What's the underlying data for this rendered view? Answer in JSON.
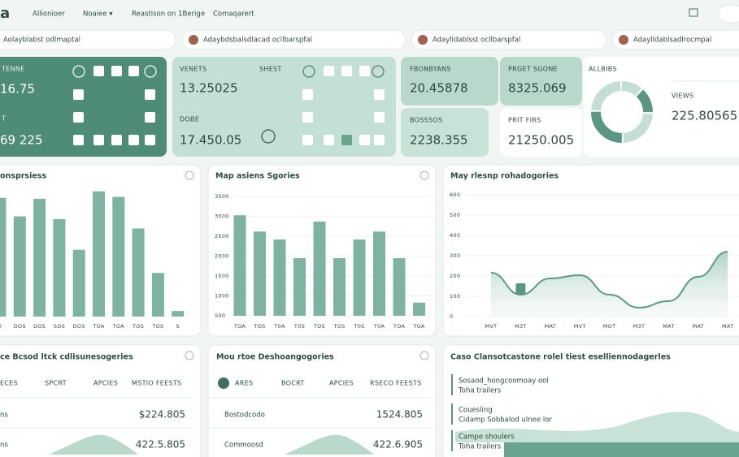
{
  "nav": {
    "brand": "a",
    "links": [
      "Allionioer",
      "Noaiee ▾",
      "Reastison on 1Berige",
      "Comaqarert"
    ]
  },
  "searches": [
    "Aolayblabst odlmaptal",
    "Adaybdsbalsdlacad ocllbarspfal",
    "Adaylldablsst ocllbarspfal",
    "Adaylldablsadlrocmpal"
  ],
  "cards": [
    {
      "label": "TENNE",
      "value": "16.75"
    },
    {
      "label": "T",
      "value": "69 225"
    },
    {
      "label": "VENETS",
      "value": "13.25025"
    },
    {
      "label": "SHEST"
    },
    {
      "label": "DOBE",
      "value": "17.450.05"
    },
    {
      "label": "FBONBYANS",
      "value": "20.45878"
    },
    {
      "label": "BOSSSOS",
      "value": "2238.355"
    },
    {
      "label": "PRGET SGONE",
      "value": "8325.069"
    },
    {
      "label": "PRIT FIRS",
      "value": "21250.005"
    },
    {
      "label": "ALLBIBS"
    },
    {
      "label": "VIEWS",
      "value": "225.80565"
    }
  ],
  "donut": {
    "values": [
      12,
      14,
      24,
      26,
      24
    ]
  },
  "bar_chart_1": {
    "type": "bar",
    "title": "onsprsiess",
    "categories": [
      "0",
      "DOS",
      "DOS",
      "SOS",
      "DOS",
      "TOA",
      "TOA",
      "TOS",
      "TOS",
      "S"
    ],
    "values": [
      128,
      108,
      127,
      105,
      72,
      135,
      129,
      95,
      47,
      6
    ],
    "ylim": [
      0,
      140
    ]
  },
  "bar_chart_2": {
    "type": "bar",
    "title": "Map asiens Sgories",
    "categories": [
      "TOA",
      "TOS",
      "T0A",
      "T0S",
      "TOS",
      "TOS",
      "T0S",
      "T0A",
      "TOA",
      "TOA"
    ],
    "values": [
      3030,
      2620,
      2420,
      1950,
      2870,
      1950,
      2420,
      2620,
      1950,
      830
    ],
    "ylim": [
      500,
      3750
    ],
    "yticks": [
      3500,
      3000,
      2500,
      2000,
      1500,
      1000,
      500
    ]
  },
  "line_chart": {
    "type": "line",
    "title": "May rlesnp rohadogories",
    "categories": [
      "MVT",
      "M3T",
      "MAT",
      "MVT",
      "MOT",
      "M3T",
      "MAT",
      "MAT",
      "MAT"
    ],
    "values": [
      216,
      108,
      188,
      204,
      108,
      44,
      76,
      196,
      320
    ],
    "ylim": [
      0,
      600
    ],
    "yticks": [
      600,
      500,
      400,
      300,
      200,
      100,
      0
    ]
  },
  "tables": [
    {
      "title": "ce Bcsod ltck cdlisunesogeries",
      "headers": [
        "ECES",
        "SPCRT",
        "APCIES",
        "MSTIO FEESTS"
      ],
      "rows": [
        [
          "ns",
          "$224.805"
        ],
        [
          "ns",
          "422.5.805"
        ]
      ]
    },
    {
      "title": "Mou rtoe Deshoangogories",
      "headers": [
        "ARES",
        "BOCRT",
        "APCIES",
        "RSECO FEESTS"
      ],
      "rows": [
        [
          "Bostodcodo",
          "1524.805"
        ],
        [
          "Commoosd",
          "422.6.905"
        ]
      ]
    }
  ],
  "list_panel": {
    "title": "Caso Clansotcastone rolel tiest eselliennodagerles",
    "items": [
      {
        "title": "Sosaod_hongcoomoay ool",
        "subtitle": "Toha trailers"
      },
      {
        "title": "Couesling",
        "subtitle": "Cidamp Sobbalod ulnee lor"
      },
      {
        "title": "Campe shoulers",
        "subtitle": "Toha trailers"
      }
    ]
  }
}
